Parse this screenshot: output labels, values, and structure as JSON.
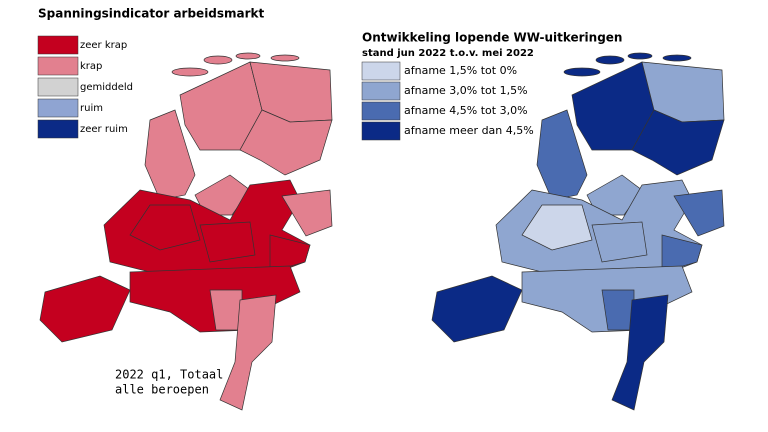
{
  "left_map": {
    "title": "Spanningsindicator arbeidsmarkt",
    "legend": [
      {
        "label": "zeer krap",
        "color": "#c4001f"
      },
      {
        "label": "krap",
        "color": "#e2808f"
      },
      {
        "label": "gemiddeld",
        "color": "#d2d2d2"
      },
      {
        "label": "ruim",
        "color": "#8fa4d2"
      },
      {
        "label": "zeer ruim",
        "color": "#0b2a86"
      }
    ],
    "caption": [
      "2022 q1, Totaal",
      "alle beroepen"
    ]
  },
  "right_map": {
    "title": "Ontwikkeling lopende WW-uitkeringen",
    "subtitle": "stand jun 2022 t.o.v. mei 2022",
    "legend": [
      {
        "label": "afname 1,5% tot 0%",
        "color": "#ccd6ea"
      },
      {
        "label": "afname 3,0% tot 1,5%",
        "color": "#8fa6d0"
      },
      {
        "label": "afname 4,5% tot 3,0%",
        "color": "#4a6bb0"
      },
      {
        "label": "afname meer dan 4,5%",
        "color": "#0b2a86"
      }
    ]
  }
}
